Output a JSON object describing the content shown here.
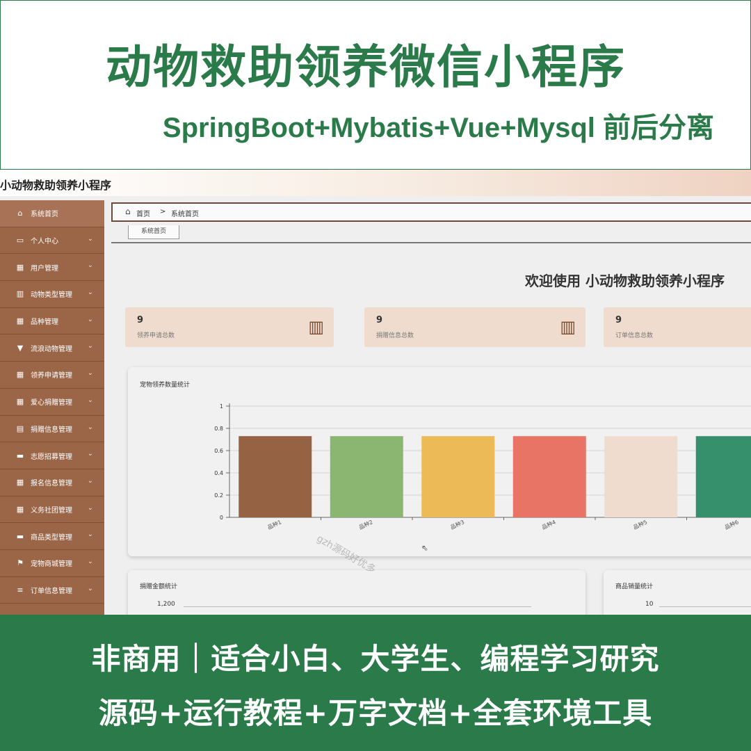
{
  "banner": {
    "title": "动物救助领养微信小程序",
    "subtitle": "SpringBoot+Mybatis+Vue+Mysql 前后分离",
    "bottom_line1": "非商用｜适合小白、大学生、编程学习研究",
    "bottom_line2": "源码+运行教程+万字文档+全套环境工具"
  },
  "app": {
    "title": "小动物救助领养小程序",
    "breadcrumb": {
      "home": "首页",
      "separator": ">",
      "current": "系统首页"
    },
    "tab": "系统首页",
    "welcome": "欢迎使用 小动物救助领养小程序",
    "watermark": "gzh源码好优多"
  },
  "sidebar": {
    "items": [
      {
        "label": "系统首页",
        "icon": "home-icon",
        "glyph": "⌂",
        "chevron": ""
      },
      {
        "label": "个人中心",
        "icon": "card-icon",
        "glyph": "▭",
        "chevron": "⌄"
      },
      {
        "label": "用户管理",
        "icon": "grid-icon",
        "glyph": "▦",
        "chevron": "⌄"
      },
      {
        "label": "动物类型管理",
        "icon": "bar-chart-icon",
        "glyph": "▥",
        "chevron": "⌄"
      },
      {
        "label": "品种管理",
        "icon": "grid-icon",
        "glyph": "▦",
        "chevron": "⌄"
      },
      {
        "label": "流浪动物管理",
        "icon": "pin-icon",
        "glyph": "▼",
        "chevron": "⌄"
      },
      {
        "label": "领养申请管理",
        "icon": "grid-icon",
        "glyph": "▦",
        "chevron": "⌄"
      },
      {
        "label": "爱心捐赠管理",
        "icon": "grid-icon",
        "glyph": "▦",
        "chevron": "⌄"
      },
      {
        "label": "捐赠信息管理",
        "icon": "table-icon",
        "glyph": "▤",
        "chevron": "⌄"
      },
      {
        "label": "志愿招募管理",
        "icon": "card-icon",
        "glyph": "▬",
        "chevron": "⌄"
      },
      {
        "label": "报名信息管理",
        "icon": "grid-icon",
        "glyph": "▦",
        "chevron": "⌄"
      },
      {
        "label": "义务社团管理",
        "icon": "grid-icon",
        "glyph": "▦",
        "chevron": "⌄"
      },
      {
        "label": "商品类型管理",
        "icon": "monitor-icon",
        "glyph": "▬",
        "chevron": "⌄"
      },
      {
        "label": "宠物商城管理",
        "icon": "flag-icon",
        "glyph": "⚑",
        "chevron": "⌄"
      },
      {
        "label": "订单信息管理",
        "icon": "list-icon",
        "glyph": "≡",
        "chevron": "⌄"
      }
    ]
  },
  "stats": [
    {
      "value": "9",
      "label": "领养申请总数",
      "icon": "bar-chart-icon",
      "glyph": "▥",
      "show_icon": true
    },
    {
      "value": "9",
      "label": "捐赠信息总数",
      "icon": "bar-chart-icon",
      "glyph": "▥",
      "show_icon": true
    },
    {
      "value": "9",
      "label": "订单信息总数",
      "icon": "",
      "glyph": "",
      "show_icon": false
    }
  ],
  "charts": {
    "adoption": {
      "title": "宠物领养数量统计"
    },
    "donation": {
      "title": "捐赠金额统计",
      "top_tick": "1,200"
    },
    "sales": {
      "title": "商品销量统计",
      "top_tick": "10"
    }
  },
  "chart_data": {
    "type": "bar",
    "title": "宠物领养数量统计",
    "categories": [
      "品种1",
      "品种2",
      "品种3",
      "品种4",
      "品种5",
      "品种6"
    ],
    "values": [
      0.73,
      0.73,
      0.73,
      0.73,
      0.73,
      0.73
    ],
    "colors": [
      "#956243",
      "#8ab672",
      "#ecba57",
      "#e87466",
      "#efdccf",
      "#36906b"
    ],
    "yticks": [
      "0",
      "0.2",
      "0.4",
      "0.6",
      "0.8",
      "1"
    ],
    "ylim": [
      0,
      1
    ],
    "grid": true
  }
}
